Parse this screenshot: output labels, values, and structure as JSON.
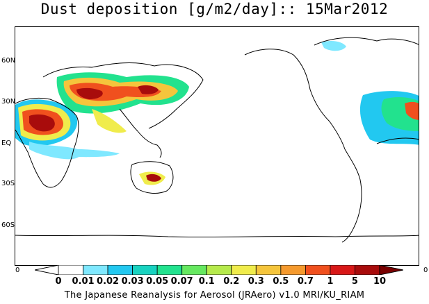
{
  "title": "Dust deposition [g/m2/day]:: 15Mar2012",
  "lat_labels": [
    "60N",
    "30N",
    "EQ",
    "30S",
    "60S"
  ],
  "colorbar": {
    "end_left": "0",
    "end_right": "0",
    "ticks": [
      "0",
      "0.01",
      "0.02",
      "0.03",
      "0.05",
      "0.07",
      "0.1",
      "0.2",
      "0.3",
      "0.5",
      "0.7",
      "1",
      "5",
      "10"
    ],
    "colors": [
      "#ffffff",
      "#ffffff",
      "#7fe8ff",
      "#22c8f0",
      "#18d2c0",
      "#22e28e",
      "#66e860",
      "#b6ea4c",
      "#f0ec4c",
      "#f5c53c",
      "#f59a2e",
      "#f0501e",
      "#d81818",
      "#a80c0c",
      "#7a0000"
    ]
  },
  "footer": "The Japanese Reanalysis for Aerosol (JRAero) v1.0 MRI/KU_RIAM",
  "legend_colors": {
    "low": "#7fe8ff",
    "medium": "#22e28e",
    "high": "#f0ec4c",
    "very_high": "#d81818"
  }
}
